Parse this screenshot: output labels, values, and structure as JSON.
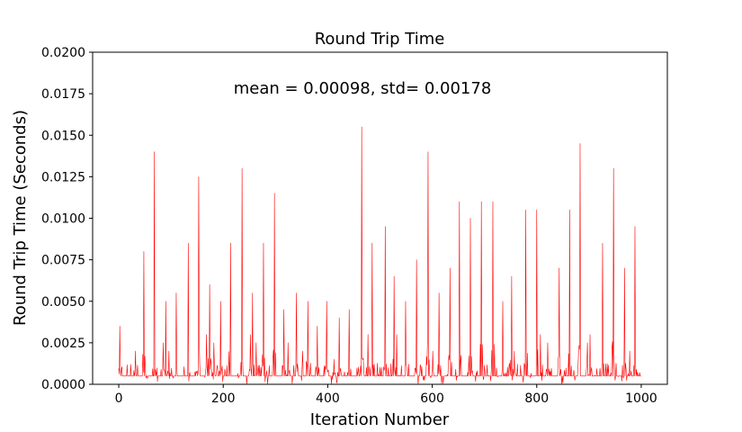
{
  "chart_data": {
    "type": "line",
    "title": "Round Trip Time",
    "xlabel": "Iteration Number",
    "ylabel": "Round Trip Time (Seconds)",
    "annotation": "mean = 0.00098, std= 0.00178",
    "xlim": [
      -50,
      1050
    ],
    "ylim": [
      0,
      0.02
    ],
    "xticks": [
      0,
      200,
      400,
      600,
      800,
      1000
    ],
    "xtick_labels": [
      "0",
      "200",
      "400",
      "600",
      "800",
      "1000"
    ],
    "yticks": [
      0.0,
      0.0025,
      0.005,
      0.0075,
      0.01,
      0.0125,
      0.015,
      0.0175,
      0.02
    ],
    "ytick_labels": [
      "0.0000",
      "0.0025",
      "0.0050",
      "0.0075",
      "0.0100",
      "0.0125",
      "0.0150",
      "0.0175",
      "0.0200"
    ],
    "grid": false,
    "series": [
      {
        "color": "#ff0000",
        "iterations": 1000,
        "baseline": 0.0005,
        "peaks": [
          [
            2,
            0.0035
          ],
          [
            32,
            0.002
          ],
          [
            48,
            0.008
          ],
          [
            68,
            0.014
          ],
          [
            85,
            0.0025
          ],
          [
            90,
            0.005
          ],
          [
            96,
            0.002
          ],
          [
            110,
            0.0055
          ],
          [
            133,
            0.0085
          ],
          [
            153,
            0.0125
          ],
          [
            168,
            0.003
          ],
          [
            174,
            0.006
          ],
          [
            182,
            0.0025
          ],
          [
            195,
            0.005
          ],
          [
            214,
            0.0085
          ],
          [
            236,
            0.013
          ],
          [
            252,
            0.003
          ],
          [
            256,
            0.0055
          ],
          [
            263,
            0.0025
          ],
          [
            277,
            0.0085
          ],
          [
            298,
            0.0115
          ],
          [
            316,
            0.0045
          ],
          [
            324,
            0.0025
          ],
          [
            340,
            0.0055
          ],
          [
            352,
            0.002
          ],
          [
            362,
            0.005
          ],
          [
            380,
            0.0035
          ],
          [
            398,
            0.005
          ],
          [
            412,
            0.0015
          ],
          [
            422,
            0.004
          ],
          [
            441,
            0.0045
          ],
          [
            465,
            0.0155
          ],
          [
            477,
            0.003
          ],
          [
            485,
            0.0085
          ],
          [
            510,
            0.0095
          ],
          [
            527,
            0.0065
          ],
          [
            532,
            0.003
          ],
          [
            549,
            0.005
          ],
          [
            570,
            0.0075
          ],
          [
            592,
            0.014
          ],
          [
            601,
            0.002
          ],
          [
            613,
            0.0055
          ],
          [
            634,
            0.007
          ],
          [
            652,
            0.011
          ],
          [
            673,
            0.01
          ],
          [
            694,
            0.011
          ],
          [
            716,
            0.011
          ],
          [
            735,
            0.005
          ],
          [
            752,
            0.0065
          ],
          [
            757,
            0.002
          ],
          [
            779,
            0.0105
          ],
          [
            800,
            0.0105
          ],
          [
            807,
            0.003
          ],
          [
            821,
            0.0025
          ],
          [
            843,
            0.007
          ],
          [
            863,
            0.0105
          ],
          [
            883,
            0.0145
          ],
          [
            897,
            0.0025
          ],
          [
            902,
            0.003
          ],
          [
            926,
            0.0085
          ],
          [
            947,
            0.013
          ],
          [
            968,
            0.007
          ],
          [
            978,
            0.002
          ],
          [
            988,
            0.0095
          ],
          [
            1000,
            0.0005
          ]
        ]
      }
    ]
  }
}
